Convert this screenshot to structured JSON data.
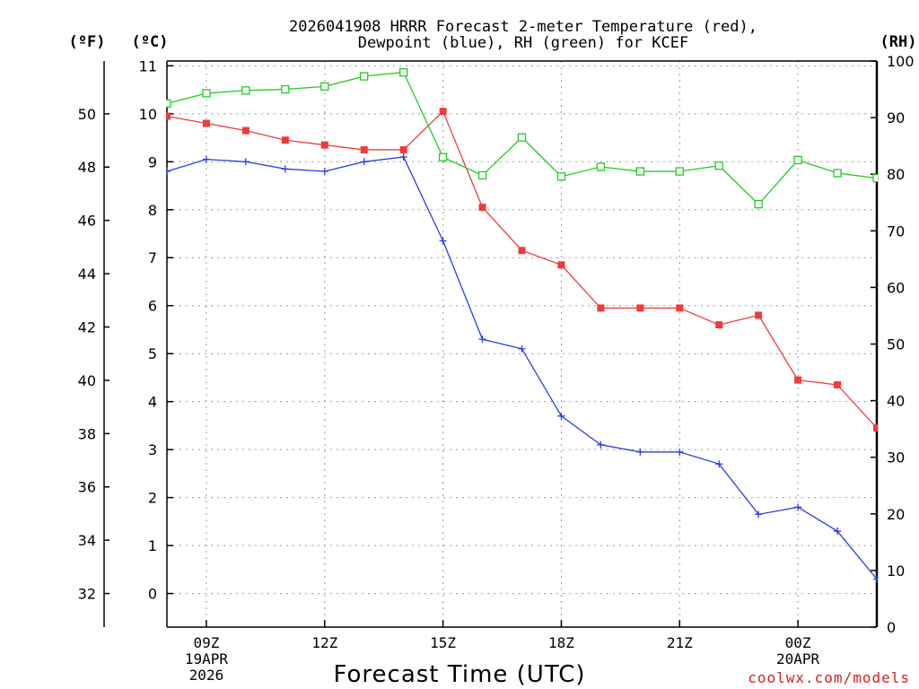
{
  "chart_data": {
    "type": "line",
    "title_line1": "2026041908 HRRR Forecast 2-meter Temperature (red),",
    "title_line2": "Dewpoint (blue), RH (green) for KCEF",
    "xlabel": "Forecast Time (UTC)",
    "credit": "coolwx.com/models",
    "units": {
      "fahrenheit": "(ºF)",
      "celsius": "(ºC)",
      "rh": "(RH)"
    },
    "x_hours": [
      8,
      9,
      10,
      11,
      12,
      13,
      14,
      15,
      16,
      17,
      18,
      19,
      20,
      21,
      22,
      23,
      24,
      25,
      26
    ],
    "xlim": [
      8,
      26
    ],
    "x_ticks": [
      {
        "hour": 9,
        "lines": [
          "09Z",
          "19APR",
          "2026"
        ]
      },
      {
        "hour": 12,
        "lines": [
          "12Z"
        ]
      },
      {
        "hour": 15,
        "lines": [
          "15Z"
        ]
      },
      {
        "hour": 18,
        "lines": [
          "18Z"
        ]
      },
      {
        "hour": 21,
        "lines": [
          "21Z"
        ]
      },
      {
        "hour": 24,
        "lines": [
          "00Z",
          "20APR"
        ]
      }
    ],
    "celsius_axis": {
      "ylim": [
        -0.7,
        11.1
      ],
      "ticks": [
        0,
        1,
        2,
        3,
        4,
        5,
        6,
        7,
        8,
        9,
        10,
        11
      ]
    },
    "fahrenheit_axis": {
      "ticks": [
        32,
        34,
        36,
        38,
        40,
        42,
        44,
        46,
        48,
        50
      ]
    },
    "rh_axis": {
      "ylim": [
        0,
        100
      ],
      "ticks": [
        0,
        10,
        20,
        30,
        40,
        50,
        60,
        70,
        80,
        90,
        100
      ]
    },
    "series": [
      {
        "name": "Temperature",
        "axis": "celsius",
        "color": "#ee3b3b",
        "marker": "filled-square",
        "values": [
          9.95,
          9.8,
          9.65,
          9.45,
          9.35,
          9.25,
          9.25,
          10.05,
          8.05,
          7.15,
          6.85,
          5.95,
          5.95,
          5.95,
          5.6,
          5.8,
          4.45,
          4.35,
          3.45
        ]
      },
      {
        "name": "Dewpoint",
        "axis": "celsius",
        "color": "#2b3de6",
        "marker": "plus",
        "values": [
          8.8,
          9.05,
          9.0,
          8.85,
          8.8,
          9.0,
          9.1,
          7.35,
          5.3,
          5.1,
          3.7,
          3.1,
          2.95,
          2.95,
          2.7,
          1.65,
          1.8,
          1.3,
          0.3
        ]
      },
      {
        "name": "Relative Humidity",
        "axis": "rh",
        "color": "#22cc22",
        "marker": "open-square",
        "values": [
          92.5,
          94.3,
          94.8,
          95.0,
          95.5,
          97.3,
          98.0,
          83.0,
          79.8,
          86.5,
          79.6,
          81.3,
          80.5,
          80.5,
          81.5,
          74.7,
          82.5,
          80.2,
          79.3
        ]
      }
    ]
  }
}
